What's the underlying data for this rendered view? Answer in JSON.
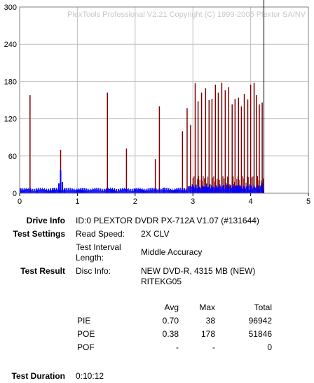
{
  "chart_data": {
    "type": "bar",
    "watermark": "PlexTools Professional V2.21 Copyright (C) 1999-2005 Plextor SA/NV",
    "xlim": [
      0,
      5
    ],
    "ylim": [
      0,
      300
    ],
    "x_ticks": [
      "0",
      "1",
      "2",
      "3",
      "4",
      "5"
    ],
    "y_ticks": [
      "0",
      "60",
      "120",
      "180",
      "240",
      "300"
    ],
    "grid": true,
    "cursor_x": 4.23,
    "colors": {
      "poe": "#800000",
      "pie": "#0000ff",
      "cursor": "#000000",
      "grid": "#c0c0c0"
    },
    "series": [
      {
        "key": "poe",
        "x": [
          0.18,
          0.71,
          1.52,
          1.85,
          2.35,
          2.42,
          2.82,
          2.9,
          2.96,
          3.04,
          3.09,
          3.15,
          3.22,
          3.28,
          3.33,
          3.39,
          3.44,
          3.5,
          3.56,
          3.62,
          3.68,
          3.73,
          3.79,
          3.84,
          3.89,
          3.95,
          4.0,
          4.06,
          4.1,
          4.15,
          4.2
        ],
        "values": [
          158,
          70,
          162,
          72,
          55,
          140,
          100,
          137,
          110,
          177,
          148,
          162,
          169,
          150,
          152,
          175,
          162,
          178,
          166,
          171,
          143,
          152,
          154,
          140,
          160,
          151,
          175,
          178,
          158,
          143,
          146
        ]
      },
      {
        "key": "pie",
        "x": [
          0.02,
          0.3,
          0.6,
          0.68,
          0.71,
          0.74,
          0.78,
          1.0,
          1.5,
          2.0,
          2.5,
          2.85,
          3.0,
          3.2,
          3.4,
          3.6,
          3.8,
          4.0,
          4.2
        ],
        "values": [
          8,
          6,
          8,
          16,
          37,
          18,
          8,
          6,
          7,
          7,
          9,
          8,
          12,
          10,
          9,
          14,
          12,
          10,
          16
        ]
      }
    ]
  },
  "info": {
    "drive_info_label": "Drive Info",
    "drive_info_value": "ID:0 PLEXTOR DVDR PX-712A V1.07 (#131644)",
    "test_settings_label": "Test Settings",
    "read_speed_label": "Read Speed:",
    "read_speed_value": "2X CLV",
    "interval_label_1": "Test Interval",
    "interval_label_2": "Length:",
    "interval_value": "Middle Accuracy",
    "test_result_label": "Test Result",
    "disc_info_label": "Disc Info:",
    "disc_info_value_1": "NEW DVD-R, 4315 MB (NEW)",
    "disc_info_value_2": "RITEKG05",
    "test_duration_label": "Test Duration",
    "test_duration_value": "0:10:12"
  },
  "results": {
    "headers": [
      "Avg",
      "Max",
      "Total"
    ],
    "rows": [
      {
        "name": "PIE",
        "avg": "0.70",
        "max": "38",
        "total": "96942"
      },
      {
        "name": "POE",
        "avg": "0.38",
        "max": "178",
        "total": "51846"
      },
      {
        "name": "POF",
        "avg": "-",
        "max": "-",
        "total": "0"
      }
    ]
  }
}
